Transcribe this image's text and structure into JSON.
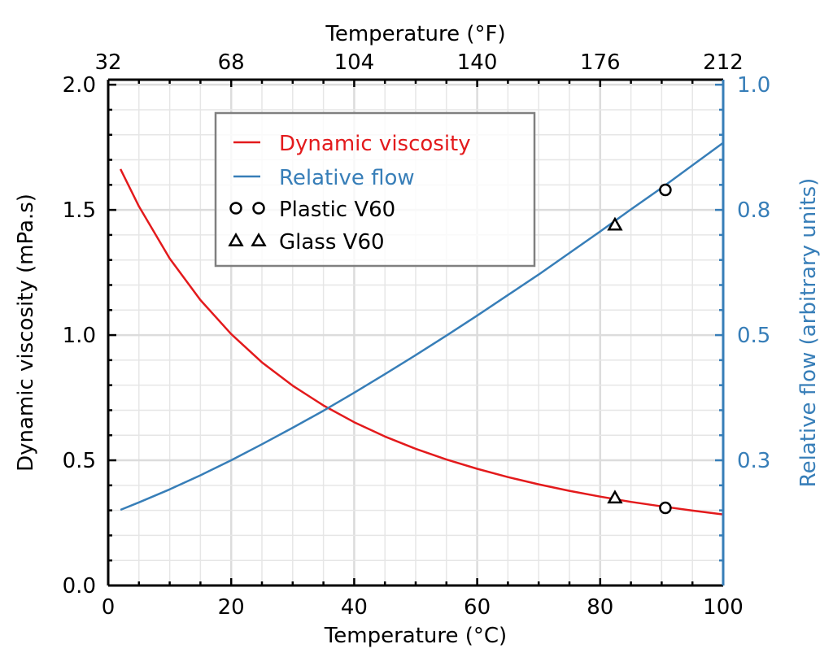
{
  "chart_data": {
    "type": "line",
    "title": "",
    "xlabel": "Temperature (°C)",
    "x2label": "Temperature (°F)",
    "ylabel": "Dynamic viscosity (mPa.s)",
    "y2label": "Relative flow (arbitrary units)",
    "xlim": [
      0,
      100
    ],
    "ylim": [
      0,
      2.02
    ],
    "y2lim": [
      0,
      1.01
    ],
    "grid": true,
    "legend_position": "upper-left",
    "x_ticks": [
      0,
      20,
      40,
      60,
      80,
      100
    ],
    "x_tick_labels": [
      "0",
      "20",
      "40",
      "60",
      "80",
      "100"
    ],
    "x2_tick_labels": [
      "32",
      "68",
      "104",
      "140",
      "176",
      "212"
    ],
    "y_ticks": [
      0,
      0.5,
      1.0,
      1.5,
      2.0
    ],
    "y_tick_labels": [
      "0.0",
      "0.5",
      "1.0",
      "1.5",
      "2.0"
    ],
    "y2_ticks": [
      0.25,
      0.5,
      0.75,
      1.0
    ],
    "y2_tick_labels": [
      "0.3",
      "0.5",
      "0.8",
      "1.0"
    ],
    "colors": {
      "viscosity": "#e31a1c",
      "flow": "#377eb8",
      "markers": "#000000",
      "grid": "#e6e6e6",
      "legend_border": "#808080"
    },
    "x": [
      2,
      5,
      10,
      15,
      20,
      25,
      30,
      35,
      40,
      45,
      50,
      55,
      60,
      65,
      70,
      75,
      80,
      85,
      90,
      95,
      100
    ],
    "series": [
      {
        "name": "Dynamic viscosity",
        "axis": "left",
        "values": [
          1.663,
          1.514,
          1.306,
          1.14,
          1.004,
          0.891,
          0.798,
          0.719,
          0.652,
          0.595,
          0.546,
          0.503,
          0.466,
          0.433,
          0.404,
          0.378,
          0.355,
          0.334,
          0.316,
          0.299,
          0.284
        ]
      },
      {
        "name": "Relative flow",
        "axis": "right",
        "values": [
          0.151,
          0.166,
          0.192,
          0.22,
          0.25,
          0.282,
          0.315,
          0.349,
          0.385,
          0.422,
          0.46,
          0.499,
          0.539,
          0.58,
          0.621,
          0.664,
          0.707,
          0.751,
          0.794,
          0.839,
          0.884
        ]
      }
    ],
    "markers": [
      {
        "name": "Plastic V60",
        "shape": "circle",
        "points": [
          {
            "x": 90.6,
            "y": 0.31,
            "axis": "left"
          },
          {
            "x": 90.6,
            "y": 0.79,
            "axis": "right"
          }
        ]
      },
      {
        "name": "Glass V60",
        "shape": "triangle",
        "points": [
          {
            "x": 82.4,
            "y": 0.35,
            "axis": "left"
          },
          {
            "x": 82.4,
            "y": 0.72,
            "axis": "right"
          }
        ]
      }
    ],
    "legend": [
      {
        "label": "Dynamic viscosity",
        "kind": "line",
        "color_key": "viscosity"
      },
      {
        "label": "Relative flow",
        "kind": "line",
        "color_key": "flow"
      },
      {
        "label": "Plastic V60",
        "kind": "circle",
        "color_key": "markers"
      },
      {
        "label": "Glass V60",
        "kind": "triangle",
        "color_key": "markers"
      }
    ]
  }
}
